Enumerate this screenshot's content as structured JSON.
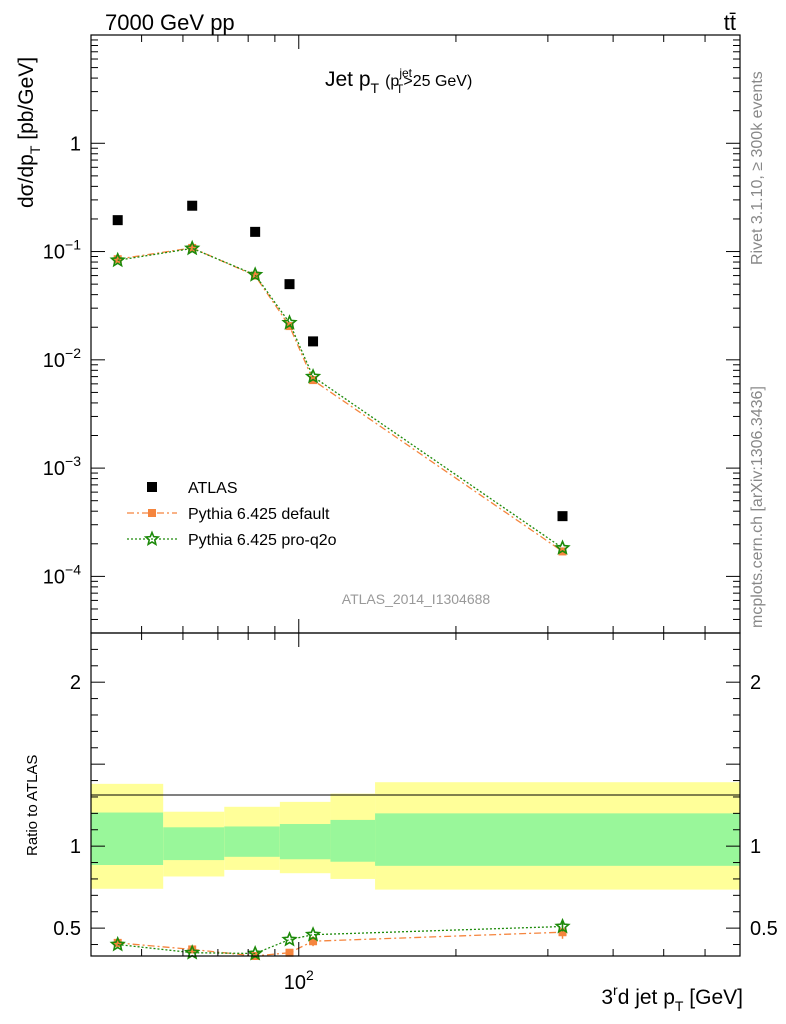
{
  "header": {
    "left": "7000 GeV pp",
    "right": "tt̄"
  },
  "side": {
    "rivet": "Rivet 3.1.10, ≥ 300k events",
    "mcplots": "mcplots.cern.ch [arXiv:1306.3436]"
  },
  "chart_data": [
    {
      "type": "scatter",
      "title_main": "Jet p",
      "title_sub": "T",
      "title_paren": "(p",
      "title_paren_sup": "jet",
      "title_paren_sub": "T",
      "title_paren_tail": ">25 GeV)",
      "ylabel": "dσ/dp",
      "ylabel_sub": "T",
      "ylabel_tail": " [pb/GeV]",
      "yscale": "log",
      "xscale": "log",
      "ylim": [
        3e-05,
        10
      ],
      "xlim": [
        40,
        700
      ],
      "watermark": "ATLAS_2014_I1304688",
      "yticks": [
        {
          "v": 0.0001,
          "base": "10",
          "exp": "−4"
        },
        {
          "v": 0.001,
          "base": "10",
          "exp": "−3"
        },
        {
          "v": 0.01,
          "base": "10",
          "exp": "−2"
        },
        {
          "v": 0.1,
          "base": "10",
          "exp": "−1"
        },
        {
          "v": 1,
          "base": "1",
          "exp": ""
        }
      ],
      "legend": {
        "placement": "bottom-left"
      },
      "series": [
        {
          "name": "ATLAS",
          "color": "#000000",
          "marker": "square",
          "x": [
            45,
            62.5,
            82.5,
            96,
            106.5,
            320
          ],
          "y": [
            0.195,
            0.265,
            0.152,
            0.05,
            0.0148,
            0.00036
          ]
        },
        {
          "name": "Pythia 6.425 default",
          "color": "#f5853e",
          "marker": "square-small",
          "line": "dashdot",
          "x": [
            45,
            62.5,
            82.5,
            96,
            106.5,
            320
          ],
          "y": [
            0.085,
            0.108,
            0.06,
            0.0205,
            0.0065,
            0.00017
          ]
        },
        {
          "name": "Pythia 6.425 pro-q2o",
          "color": "#1d8a0a",
          "marker": "star",
          "line": "dotted",
          "x": [
            45,
            62.5,
            82.5,
            96,
            106.5,
            320
          ],
          "y": [
            0.083,
            0.107,
            0.061,
            0.022,
            0.007,
            0.000183
          ]
        }
      ]
    },
    {
      "type": "scatter",
      "ylabel": "Ratio to ATLAS",
      "xlabel_pre": "3",
      "xlabel_sup": "r",
      "xlabel_mid": "d jet p",
      "xlabel_sub": "T",
      "xlabel_tail": " [GeV]",
      "xscale": "log",
      "ylim": [
        0.33,
        2.3
      ],
      "xlim": [
        40,
        700
      ],
      "yticks": [
        0.5,
        1,
        2
      ],
      "xtick_label": {
        "v": 100,
        "base": "10",
        "exp": "2"
      },
      "bands": {
        "edges": [
          40,
          55,
          72,
          92,
          115,
          140,
          700
        ],
        "outer_lo": [
          0.74,
          0.815,
          0.855,
          0.835,
          0.8,
          0.735
        ],
        "outer_hi": [
          1.38,
          1.21,
          1.24,
          1.27,
          1.32,
          1.39
        ],
        "inner_lo": [
          0.885,
          0.915,
          0.935,
          0.92,
          0.905,
          0.88
        ],
        "inner_hi": [
          1.205,
          1.115,
          1.12,
          1.135,
          1.16,
          1.2
        ],
        "outer_color": "#ffff99",
        "inner_color": "#99f79a"
      },
      "series": [
        {
          "name": "Pythia 6.425 default",
          "color": "#f5853e",
          "x": [
            45,
            62.5,
            82.5,
            96,
            106.5,
            320
          ],
          "y": [
            0.41,
            0.37,
            0.33,
            0.35,
            0.42,
            0.475
          ],
          "err": [
            0.02,
            0.02,
            0.02,
            0.02,
            0.03,
            0.04
          ]
        },
        {
          "name": "Pythia 6.425 pro-q2o",
          "color": "#1d8a0a",
          "x": [
            45,
            62.5,
            82.5,
            96,
            106.5,
            320
          ],
          "y": [
            0.4,
            0.35,
            0.345,
            0.43,
            0.46,
            0.51
          ],
          "err": [
            0,
            0,
            0,
            0,
            0,
            0.03
          ]
        }
      ]
    }
  ]
}
